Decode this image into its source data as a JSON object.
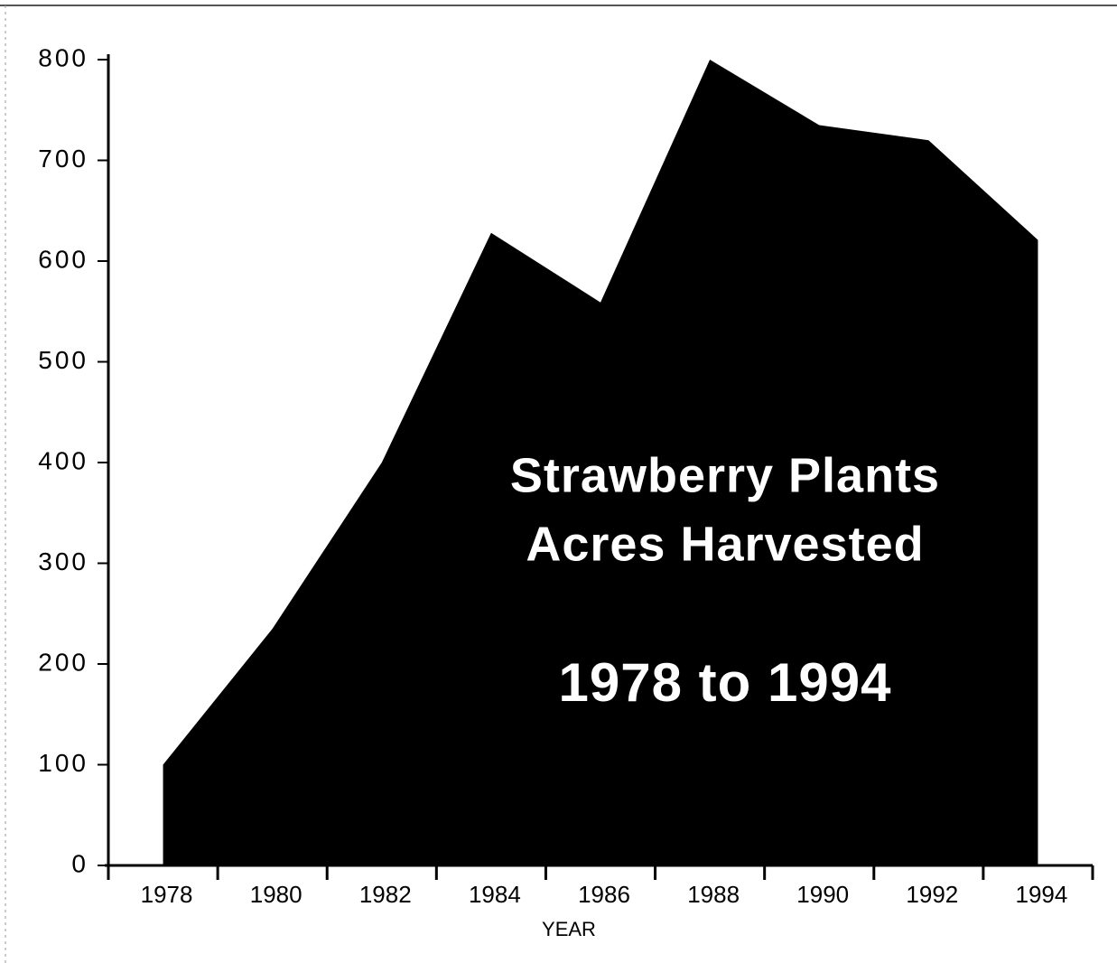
{
  "chart_data": {
    "type": "area",
    "title": [
      "Strawberry Plants",
      "Acres Harvested"
    ],
    "subtitle": "1978 to 1994",
    "xlabel": "YEAR",
    "x": [
      1978,
      1980,
      1982,
      1984,
      1986,
      1988,
      1990,
      1992,
      1994
    ],
    "values": [
      100,
      235,
      400,
      628,
      559,
      800,
      735,
      720,
      621
    ],
    "color": "#000000",
    "xlim": [
      1977,
      1995
    ],
    "xticks": [
      1978,
      1980,
      1982,
      1984,
      1986,
      1988,
      1990,
      1992,
      1994
    ],
    "xtick_marks": [
      1977,
      1979,
      1981,
      1983,
      1985,
      1987,
      1989,
      1991,
      1993,
      1995
    ],
    "ylim": [
      0,
      800
    ],
    "yticks": [
      0,
      100,
      200,
      300,
      400,
      500,
      600,
      700,
      800
    ]
  }
}
